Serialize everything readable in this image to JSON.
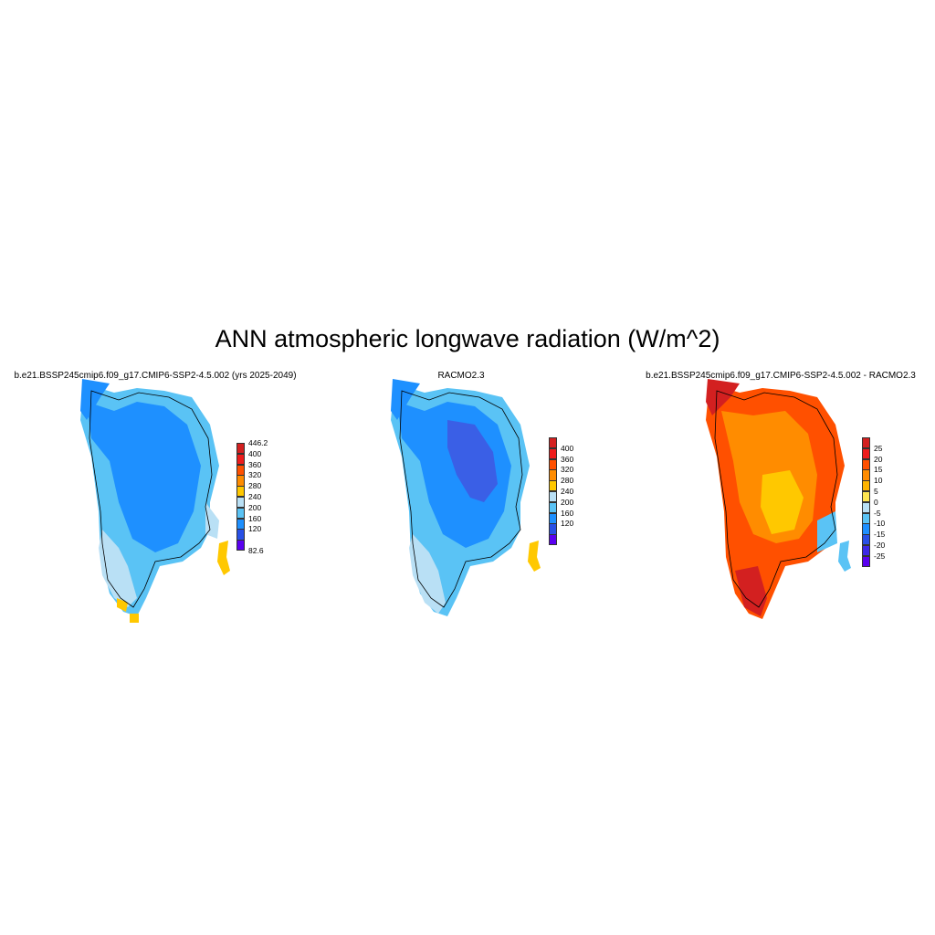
{
  "title": "ANN atmospheric longwave radiation (W/m^2)",
  "panels": [
    {
      "title": "b.e21.BSSP245cmip6.f09_g17.CMIP6-SSP2-4.5.002 (yrs 2025-2049)",
      "colorbar": {
        "labels": [
          "446.2",
          "400",
          "360",
          "320",
          "280",
          "240",
          "200",
          "160",
          "120",
          "82.6"
        ],
        "colors": [
          "#d32020",
          "#ee1c1c",
          "#ff5000",
          "#ff8c00",
          "#ffc800",
          "#b9e0f5",
          "#5ac3f5",
          "#1e90ff",
          "#2850e6",
          "#5a00f0"
        ]
      }
    },
    {
      "title": "RACMO2.3",
      "colorbar": {
        "labels": [
          "400",
          "360",
          "320",
          "280",
          "240",
          "200",
          "160",
          "120"
        ],
        "colors": [
          "#d32020",
          "#ee1c1c",
          "#ff5000",
          "#ff8c00",
          "#ffc800",
          "#b9e0f5",
          "#5ac3f5",
          "#1e90ff",
          "#2850e6",
          "#5a00f0"
        ]
      }
    },
    {
      "title": "b.e21.BSSP245cmip6.f09_g17.CMIP6-SSP2-4.5.002 - RACMO2.3",
      "colorbar": {
        "labels": [
          "25",
          "20",
          "15",
          "10",
          "5",
          "0",
          "-5",
          "-10",
          "-15",
          "-20",
          "-25"
        ],
        "colors": [
          "#d32020",
          "#ee1c1c",
          "#ff5000",
          "#ff8c00",
          "#ffb400",
          "#ffe650",
          "#b9e0f5",
          "#5ac3f5",
          "#1e90ff",
          "#2850e6",
          "#3c28e6",
          "#5a00f0"
        ]
      }
    }
  ]
}
